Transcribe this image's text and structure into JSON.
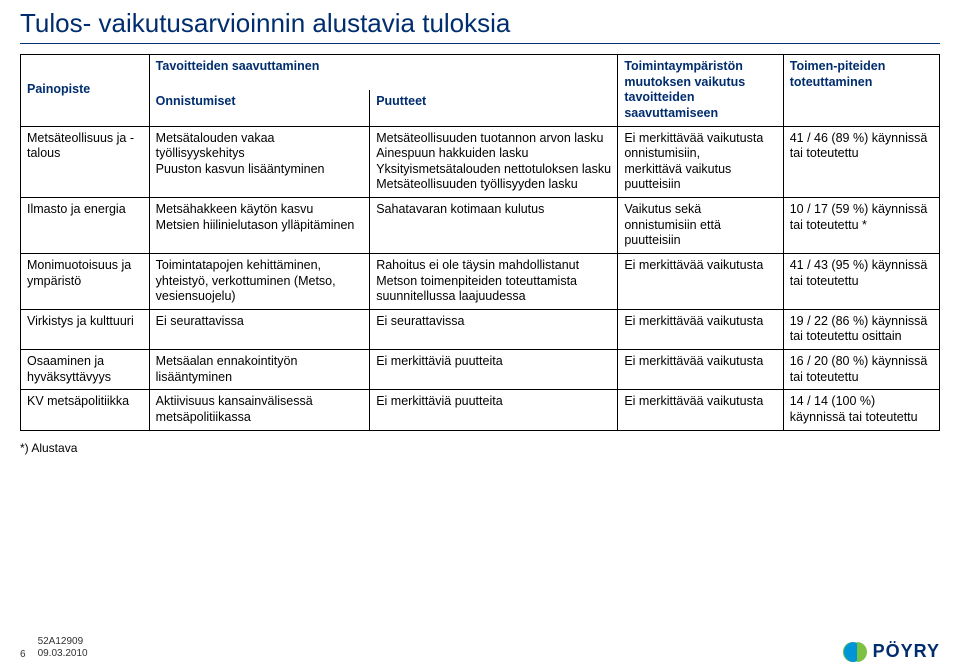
{
  "title": "Tulos- vaikutusarvioinnin alustavia tuloksia",
  "columns": {
    "c0": "Painopiste",
    "c1_top": "Tavoitteiden saavuttaminen",
    "c1a": "Onnistumiset",
    "c1b": "Puutteet",
    "c2": "Toimintaympäristön muutoksen vaikutus tavoitteiden saavuttamiseen",
    "c3": "Toimen-piteiden toteuttaminen"
  },
  "rows": [
    {
      "p": "Metsäteollisuus ja -talous",
      "onn": "Metsätalouden vakaa työllisyyskehitys\nPuuston kasvun lisääntyminen",
      "puu": "Metsäteollisuuden tuotannon arvon lasku\nAinespuun hakkuiden lasku\nYksityismetsätalouden nettotuloksen lasku\nMetsäteollisuuden työllisyyden lasku",
      "vaik": "Ei merkittävää vaikutusta onnistumisiin,\nmerkittävä vaikutus puutteisiin",
      "tot": "41 / 46 (89 %) käynnissä tai toteutettu"
    },
    {
      "p": "Ilmasto ja energia",
      "onn": "Metsähakkeen käytön kasvu\nMetsien hiilinielutason ylläpitäminen",
      "puu": "Sahatavaran kotimaan kulutus",
      "vaik": "Vaikutus sekä onnistumisiin että puutteisiin",
      "tot": "10 / 17 (59 %) käynnissä tai toteutettu *"
    },
    {
      "p": "Monimuotoisuus ja ympäristö",
      "onn": "Toimintatapojen kehittäminen, yhteistyö, verkottuminen (Metso, vesiensuojelu)",
      "puu": "Rahoitus ei ole täysin mahdollistanut Metson toimenpiteiden toteuttamista suunnitellussa laajuudessa",
      "vaik": "Ei merkittävää vaikutusta",
      "tot": "41 / 43 (95 %) käynnissä tai toteutettu"
    },
    {
      "p": "Virkistys ja kulttuuri",
      "onn": "Ei seurattavissa",
      "puu": "Ei seurattavissa",
      "vaik": "Ei merkittävää vaikutusta",
      "tot": "19 / 22 (86 %) käynnissä tai toteutettu osittain"
    },
    {
      "p": "Osaaminen ja hyväksyttävyys",
      "onn": "Metsäalan ennakointityön lisääntyminen",
      "puu": "Ei merkittäviä puutteita",
      "vaik": "Ei merkittävää vaikutusta",
      "tot": "16 / 20 (80 %) käynnissä tai toteutettu"
    },
    {
      "p": "KV metsäpolitiikka",
      "onn": "Aktiivisuus kansainvälisessä metsäpolitiikassa",
      "puu": "Ei merkittäviä puutteita",
      "vaik": "Ei merkittävää vaikutusta",
      "tot": "14 / 14 (100 %) käynnissä tai toteutettu"
    }
  ],
  "footnote": "*) Alustava",
  "footer": {
    "page": "6",
    "code": "52A12909",
    "date": "09.03.2010",
    "brand": "PÖYRY"
  },
  "colors": {
    "heading": "#002d6e",
    "logo_blue": "#0095d6",
    "logo_green": "#7cc142"
  }
}
